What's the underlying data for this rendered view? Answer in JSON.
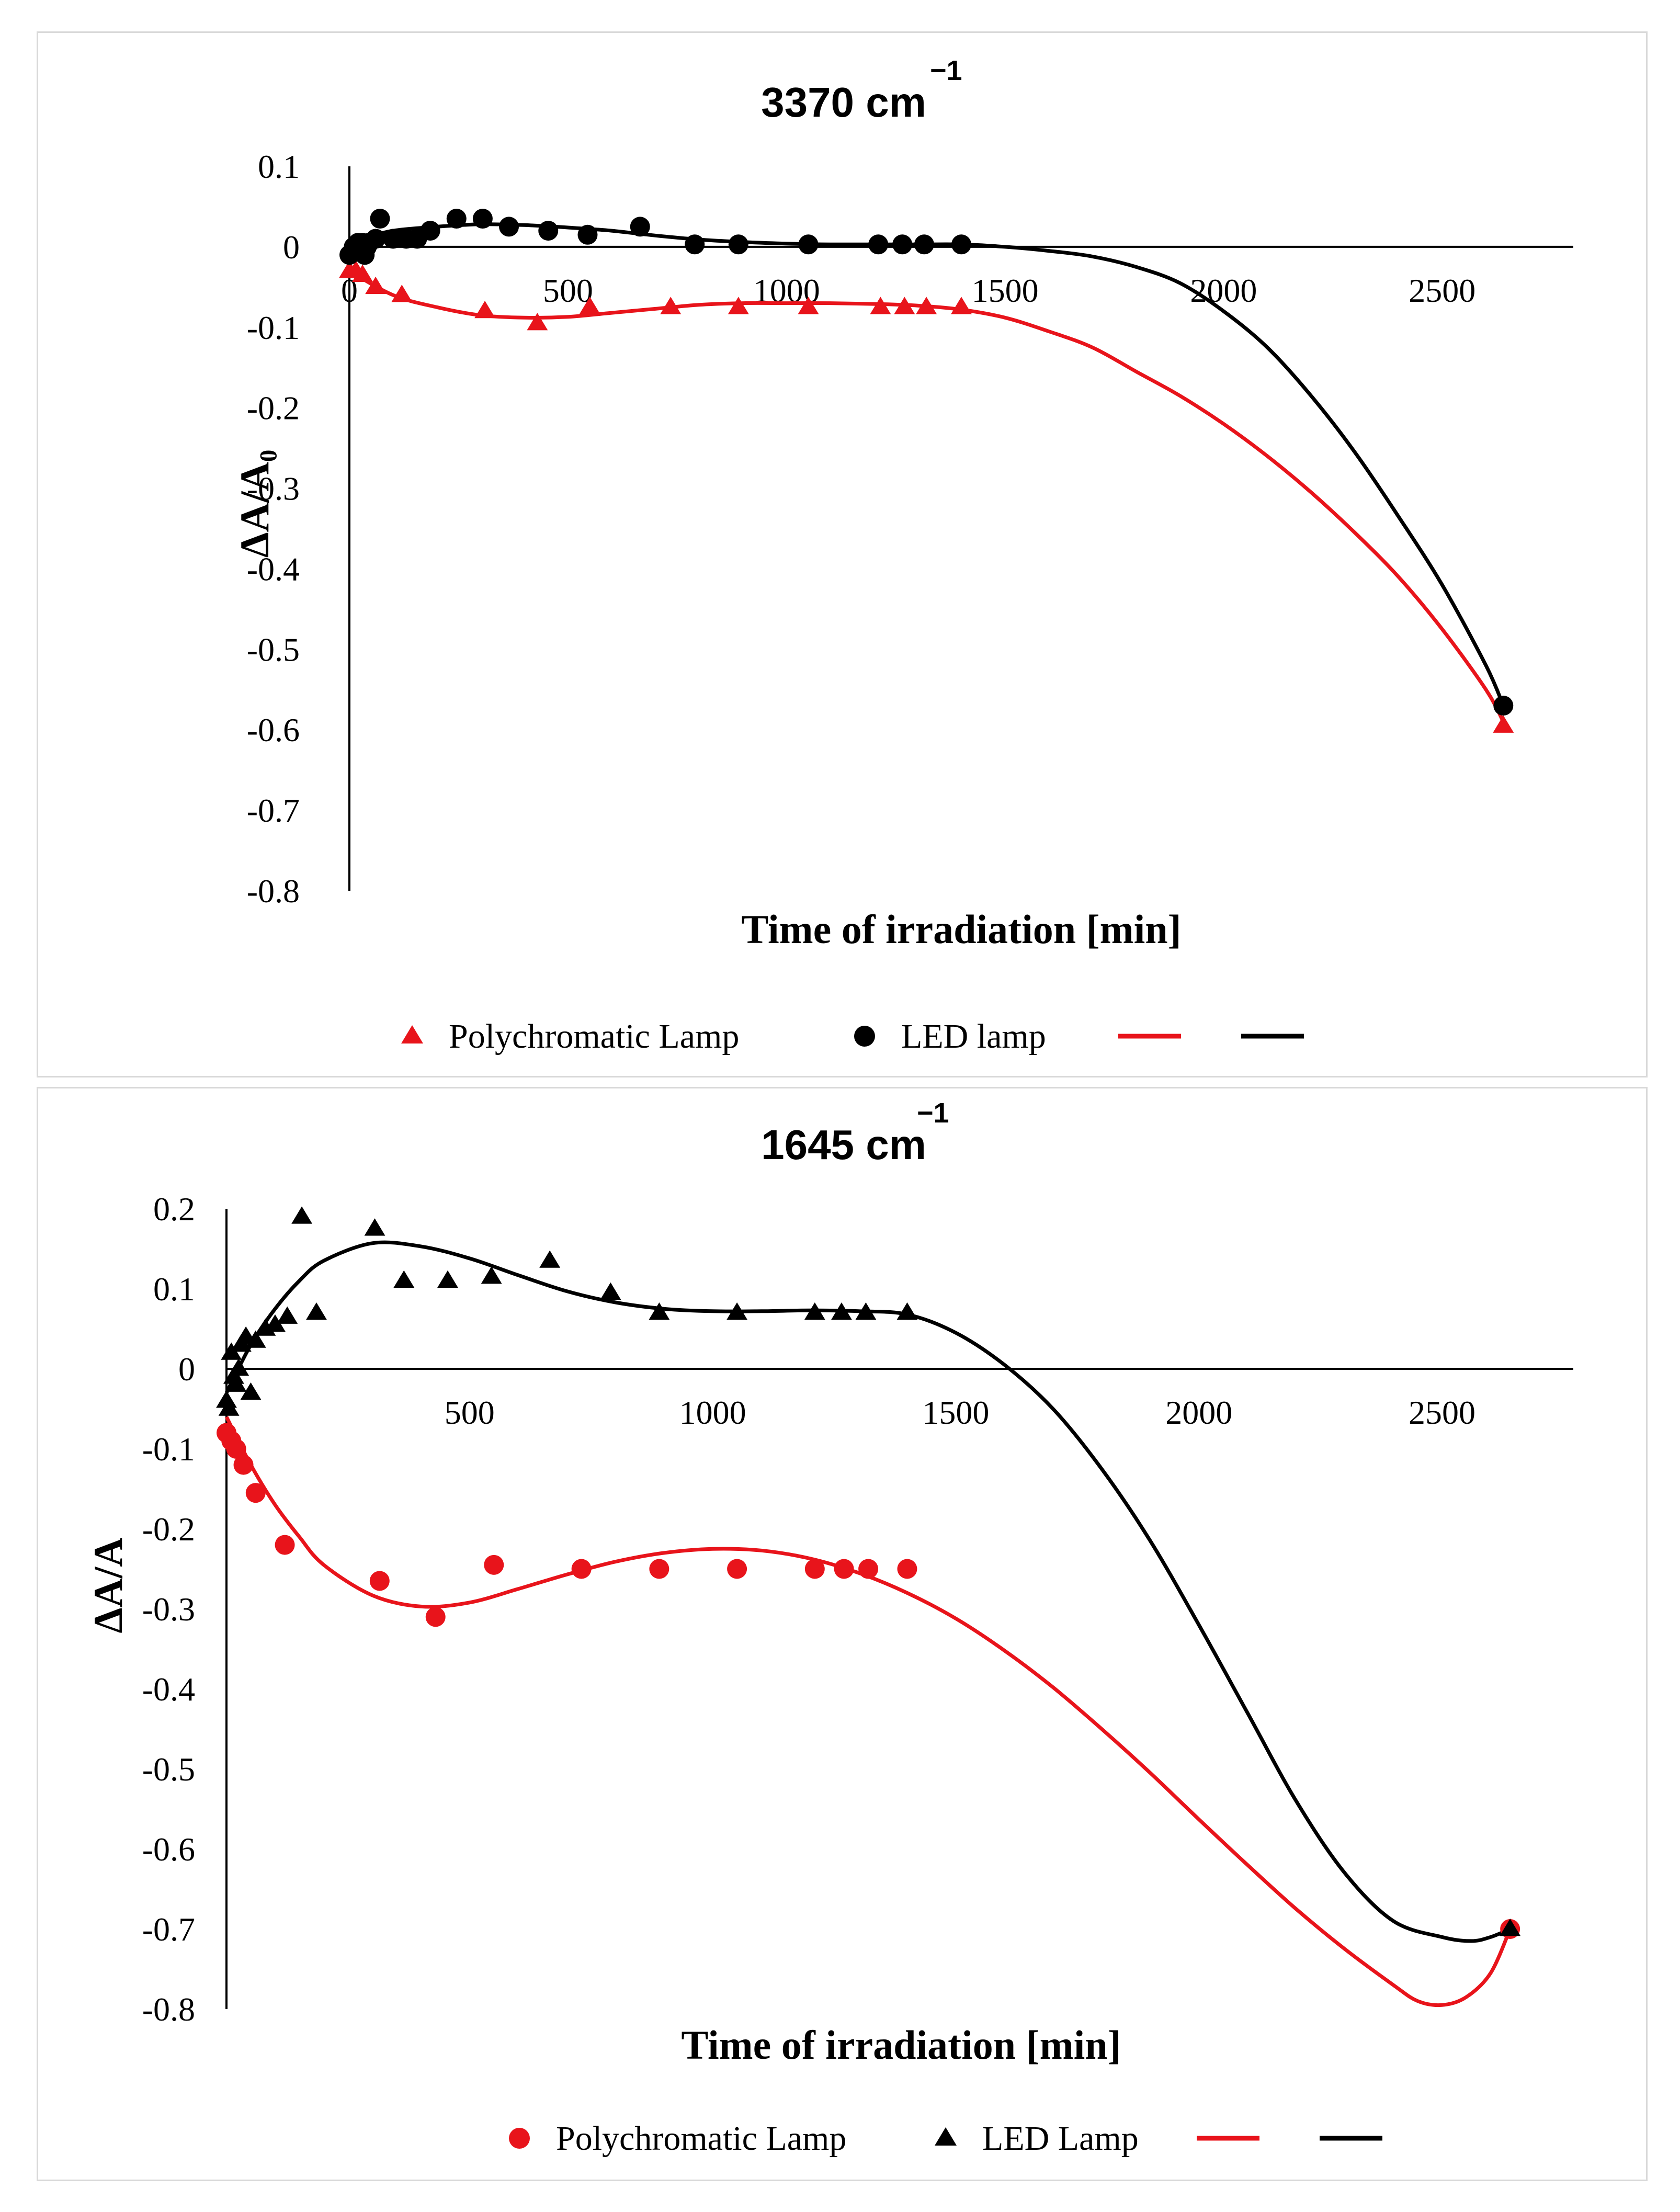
{
  "chart_data": [
    {
      "type": "scatter",
      "title": "3370 cm",
      "title_superscript": "−1",
      "xlabel": "Time of irradiation [min]",
      "ylabel": "ΔA/A₀",
      "xlim": [
        0,
        2800
      ],
      "ylim": [
        -0.8,
        0.1
      ],
      "x_ticks": [
        "0",
        "500",
        "1000",
        "1500",
        "2000",
        "2500"
      ],
      "y_ticks": [
        "0.1",
        "0",
        "-0.1",
        "-0.2",
        "-0.3",
        "-0.4",
        "-0.5",
        "-0.6",
        "-0.7",
        "-0.8"
      ],
      "legend": [
        "Polychromatic Lamp",
        "LED lamp",
        "",
        ""
      ],
      "series": [
        {
          "name": "Polychromatic Lamp",
          "marker": "triangle",
          "color": "#e8141b",
          "points": [
            [
              0,
              -0.03
            ],
            [
              15,
              -0.03
            ],
            [
              30,
              -0.035
            ],
            [
              60,
              -0.05
            ],
            [
              120,
              -0.06
            ],
            [
              310,
              -0.08
            ],
            [
              430,
              -0.095
            ],
            [
              550,
              -0.075
            ],
            [
              735,
              -0.075
            ],
            [
              890,
              -0.075
            ],
            [
              1050,
              -0.075
            ],
            [
              1215,
              -0.075
            ],
            [
              1270,
              -0.075
            ],
            [
              1320,
              -0.075
            ],
            [
              1400,
              -0.075
            ],
            [
              2640,
              -0.595
            ]
          ]
        },
        {
          "name": "LED lamp",
          "marker": "circle",
          "color": "#000000",
          "points": [
            [
              0,
              -0.01
            ],
            [
              10,
              0.0
            ],
            [
              20,
              0.005
            ],
            [
              30,
              0.005
            ],
            [
              35,
              -0.01
            ],
            [
              40,
              0.0
            ],
            [
              45,
              0.005
            ],
            [
              60,
              0.01
            ],
            [
              70,
              0.035
            ],
            [
              100,
              0.01
            ],
            [
              130,
              0.01
            ],
            [
              155,
              0.01
            ],
            [
              185,
              0.02
            ],
            [
              245,
              0.035
            ],
            [
              305,
              0.035
            ],
            [
              365,
              0.025
            ],
            [
              455,
              0.02
            ],
            [
              545,
              0.015
            ],
            [
              665,
              0.025
            ],
            [
              790,
              0.003
            ],
            [
              890,
              0.003
            ],
            [
              1050,
              0.003
            ],
            [
              1210,
              0.003
            ],
            [
              1265,
              0.003
            ],
            [
              1315,
              0.003
            ],
            [
              1400,
              0.003
            ],
            [
              2640,
              -0.57
            ]
          ]
        },
        {
          "name": "Polychromatic Lamp fit",
          "type": "line",
          "color": "#e8141b",
          "points": [
            [
              0,
              -0.03
            ],
            [
              100,
              -0.06
            ],
            [
              200,
              -0.075
            ],
            [
              300,
              -0.085
            ],
            [
              400,
              -0.088
            ],
            [
              500,
              -0.087
            ],
            [
              600,
              -0.082
            ],
            [
              700,
              -0.077
            ],
            [
              800,
              -0.072
            ],
            [
              900,
              -0.07
            ],
            [
              1000,
              -0.07
            ],
            [
              1100,
              -0.07
            ],
            [
              1200,
              -0.071
            ],
            [
              1300,
              -0.073
            ],
            [
              1400,
              -0.078
            ],
            [
              1500,
              -0.088
            ],
            [
              1600,
              -0.105
            ],
            [
              1700,
              -0.125
            ],
            [
              1800,
              -0.155
            ],
            [
              1900,
              -0.185
            ],
            [
              2000,
              -0.22
            ],
            [
              2100,
              -0.26
            ],
            [
              2200,
              -0.305
            ],
            [
              2300,
              -0.355
            ],
            [
              2400,
              -0.41
            ],
            [
              2500,
              -0.475
            ],
            [
              2600,
              -0.55
            ],
            [
              2640,
              -0.59
            ]
          ]
        },
        {
          "name": "LED lamp fit",
          "type": "line",
          "color": "#000000",
          "points": [
            [
              0,
              0.0
            ],
            [
              50,
              0.012
            ],
            [
              100,
              0.02
            ],
            [
              200,
              0.025
            ],
            [
              300,
              0.028
            ],
            [
              400,
              0.027
            ],
            [
              500,
              0.024
            ],
            [
              600,
              0.02
            ],
            [
              700,
              0.014
            ],
            [
              800,
              0.009
            ],
            [
              900,
              0.006
            ],
            [
              1000,
              0.004
            ],
            [
              1100,
              0.003
            ],
            [
              1200,
              0.003
            ],
            [
              1300,
              0.003
            ],
            [
              1400,
              0.003
            ],
            [
              1500,
              0.0
            ],
            [
              1600,
              -0.005
            ],
            [
              1700,
              -0.012
            ],
            [
              1800,
              -0.025
            ],
            [
              1900,
              -0.045
            ],
            [
              2000,
              -0.08
            ],
            [
              2100,
              -0.125
            ],
            [
              2200,
              -0.185
            ],
            [
              2300,
              -0.255
            ],
            [
              2400,
              -0.335
            ],
            [
              2500,
              -0.42
            ],
            [
              2600,
              -0.52
            ],
            [
              2640,
              -0.57
            ]
          ]
        }
      ]
    },
    {
      "type": "scatter",
      "title": "1645 cm",
      "title_superscript": "−1",
      "xlabel": "Time of irradiation [min]",
      "ylabel": "ΔA/A",
      "xlim": [
        0,
        2800
      ],
      "ylim": [
        -0.8,
        0.2
      ],
      "x_ticks": [
        "500",
        "1000",
        "1500",
        "2000",
        "2500"
      ],
      "y_ticks": [
        "0.2",
        "0.1",
        "0",
        "-0.1",
        "-0.2",
        "-0.3",
        "-0.4",
        "-0.5",
        "-0.6",
        "-0.7",
        "-0.8"
      ],
      "legend": [
        "Polychromatic Lamp",
        "LED Lamp",
        "",
        ""
      ],
      "series": [
        {
          "name": "Polychromatic Lamp",
          "marker": "circle",
          "color": "#e8141b",
          "points": [
            [
              0,
              -0.08
            ],
            [
              10,
              -0.09
            ],
            [
              20,
              -0.1
            ],
            [
              35,
              -0.12
            ],
            [
              60,
              -0.155
            ],
            [
              120,
              -0.22
            ],
            [
              315,
              -0.265
            ],
            [
              430,
              -0.31
            ],
            [
              550,
              -0.245
            ],
            [
              730,
              -0.25
            ],
            [
              890,
              -0.25
            ],
            [
              1050,
              -0.25
            ],
            [
              1210,
              -0.25
            ],
            [
              1270,
              -0.25
            ],
            [
              1320,
              -0.25
            ],
            [
              1400,
              -0.25
            ],
            [
              2640,
              -0.7
            ]
          ]
        },
        {
          "name": "LED Lamp",
          "marker": "triangle",
          "color": "#000000",
          "points": [
            [
              0,
              -0.04
            ],
            [
              5,
              -0.05
            ],
            [
              10,
              0.02
            ],
            [
              15,
              -0.01
            ],
            [
              20,
              -0.02
            ],
            [
              25,
              0.0
            ],
            [
              30,
              0.03
            ],
            [
              40,
              0.04
            ],
            [
              50,
              -0.03
            ],
            [
              60,
              0.035
            ],
            [
              80,
              0.05
            ],
            [
              100,
              0.055
            ],
            [
              125,
              0.065
            ],
            [
              155,
              0.19
            ],
            [
              185,
              0.07
            ],
            [
              305,
              0.175
            ],
            [
              365,
              0.11
            ],
            [
              455,
              0.11
            ],
            [
              545,
              0.115
            ],
            [
              665,
              0.135
            ],
            [
              790,
              0.095
            ],
            [
              890,
              0.07
            ],
            [
              1050,
              0.07
            ],
            [
              1210,
              0.07
            ],
            [
              1265,
              0.07
            ],
            [
              1315,
              0.07
            ],
            [
              1400,
              0.07
            ],
            [
              2640,
              -0.7
            ]
          ]
        },
        {
          "name": "Polychromatic Lamp fit",
          "type": "line",
          "color": "#e8141b",
          "points": [
            [
              0,
              -0.06
            ],
            [
              50,
              -0.12
            ],
            [
              100,
              -0.17
            ],
            [
              150,
              -0.21
            ],
            [
              200,
              -0.245
            ],
            [
              300,
              -0.283
            ],
            [
              400,
              -0.297
            ],
            [
              500,
              -0.292
            ],
            [
              600,
              -0.275
            ],
            [
              700,
              -0.257
            ],
            [
              800,
              -0.241
            ],
            [
              900,
              -0.23
            ],
            [
              1000,
              -0.225
            ],
            [
              1100,
              -0.227
            ],
            [
              1200,
              -0.237
            ],
            [
              1300,
              -0.255
            ],
            [
              1400,
              -0.28
            ],
            [
              1500,
              -0.312
            ],
            [
              1600,
              -0.352
            ],
            [
              1700,
              -0.398
            ],
            [
              1800,
              -0.45
            ],
            [
              1900,
              -0.505
            ],
            [
              2000,
              -0.563
            ],
            [
              2100,
              -0.62
            ],
            [
              2200,
              -0.675
            ],
            [
              2300,
              -0.725
            ],
            [
              2400,
              -0.77
            ],
            [
              2450,
              -0.79
            ],
            [
              2500,
              -0.795
            ],
            [
              2550,
              -0.785
            ],
            [
              2600,
              -0.755
            ],
            [
              2640,
              -0.7
            ]
          ]
        },
        {
          "name": "LED Lamp fit",
          "type": "line",
          "color": "#000000",
          "points": [
            [
              0,
              -0.03
            ],
            [
              50,
              0.03
            ],
            [
              100,
              0.075
            ],
            [
              150,
              0.11
            ],
            [
              200,
              0.135
            ],
            [
              300,
              0.157
            ],
            [
              400,
              0.153
            ],
            [
              500,
              0.138
            ],
            [
              600,
              0.117
            ],
            [
              700,
              0.097
            ],
            [
              800,
              0.083
            ],
            [
              900,
              0.075
            ],
            [
              1000,
              0.072
            ],
            [
              1100,
              0.072
            ],
            [
              1200,
              0.073
            ],
            [
              1300,
              0.072
            ],
            [
              1400,
              0.068
            ],
            [
              1500,
              0.045
            ],
            [
              1600,
              0.005
            ],
            [
              1700,
              -0.05
            ],
            [
              1800,
              -0.125
            ],
            [
              1900,
              -0.215
            ],
            [
              2000,
              -0.32
            ],
            [
              2100,
              -0.43
            ],
            [
              2200,
              -0.54
            ],
            [
              2300,
              -0.63
            ],
            [
              2400,
              -0.69
            ],
            [
              2500,
              -0.71
            ],
            [
              2560,
              -0.715
            ],
            [
              2600,
              -0.71
            ],
            [
              2640,
              -0.7
            ]
          ]
        }
      ]
    }
  ]
}
